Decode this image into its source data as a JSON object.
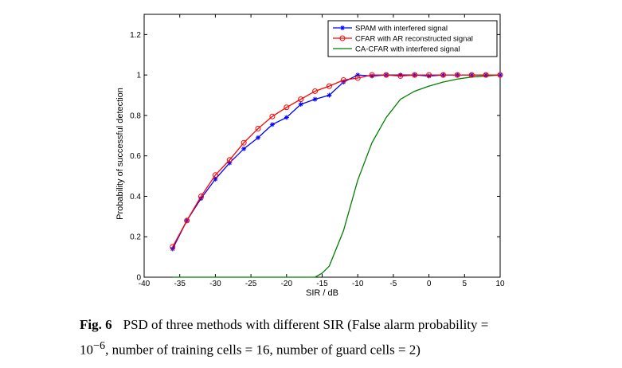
{
  "chart_data": {
    "type": "line",
    "xlabel": "SIR / dB",
    "ylabel": "Probability of successful detection",
    "xlim": [
      -40,
      10
    ],
    "ylim": [
      0,
      1.3
    ],
    "xticks": [
      -40,
      -35,
      -30,
      -25,
      -20,
      -15,
      -10,
      -5,
      0,
      5,
      10
    ],
    "yticks": [
      0,
      0.2,
      0.4,
      0.6,
      0.8,
      1,
      1.2
    ],
    "grid": false,
    "legend_position": "top-right",
    "series": [
      {
        "name": "SPAM with interfered signal",
        "color": "#0000ff",
        "marker": "star",
        "x": [
          -36,
          -34,
          -32,
          -30,
          -28,
          -26,
          -24,
          -22,
          -20,
          -18,
          -16,
          -14,
          -12,
          -10,
          -8,
          -6,
          -4,
          -2,
          0,
          2,
          4,
          6,
          8,
          10
        ],
        "y": [
          0.14,
          0.28,
          0.39,
          0.485,
          0.565,
          0.635,
          0.69,
          0.755,
          0.79,
          0.855,
          0.88,
          0.9,
          0.965,
          1.0,
          0.995,
          1.0,
          1.0,
          1.0,
          0.995,
          1.0,
          1.0,
          1.0,
          1.0,
          1.0
        ]
      },
      {
        "name": "CFAR with AR reconstructed signal",
        "color": "#ff0000",
        "marker": "circle",
        "x": [
          -36,
          -34,
          -32,
          -30,
          -28,
          -26,
          -24,
          -22,
          -20,
          -18,
          -16,
          -14,
          -12,
          -10,
          -8,
          -6,
          -4,
          -2,
          0,
          2,
          4,
          6,
          8,
          10
        ],
        "y": [
          0.15,
          0.28,
          0.4,
          0.505,
          0.58,
          0.665,
          0.735,
          0.795,
          0.84,
          0.88,
          0.92,
          0.945,
          0.975,
          0.985,
          1.0,
          1.0,
          0.995,
          1.0,
          1.0,
          1.0,
          1.0,
          1.0,
          1.0,
          1.0
        ]
      },
      {
        "name": "CA-CFAR with interfered signal",
        "color": "#007f00",
        "marker": "none",
        "x": [
          -36,
          -34,
          -32,
          -30,
          -28,
          -26,
          -24,
          -22,
          -20,
          -18,
          -16,
          -15,
          -14,
          -12,
          -10,
          -8,
          -6,
          -4,
          -2,
          0,
          2,
          4,
          6,
          8,
          10
        ],
        "y": [
          0,
          0,
          0,
          0,
          0,
          0,
          0,
          0,
          0,
          0,
          0,
          0.02,
          0.055,
          0.23,
          0.48,
          0.665,
          0.79,
          0.88,
          0.92,
          0.945,
          0.965,
          0.98,
          0.99,
          0.995,
          1.0
        ]
      }
    ]
  },
  "caption": {
    "label": "Fig. 6",
    "text_before": "PSD of three methods with different SIR (False alarm probability =",
    "base": "10",
    "exponent": "−6",
    "text_after": ", number of training cells = 16, number of guard cells = 2)"
  }
}
